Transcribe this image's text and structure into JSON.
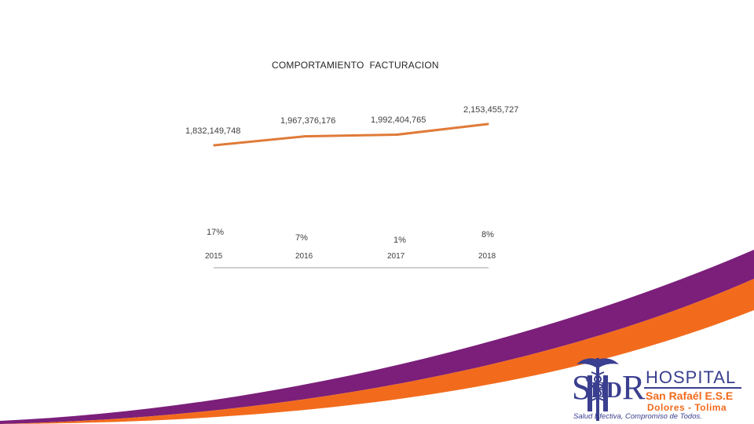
{
  "chart_data": {
    "type": "line",
    "title": "COMPORTAMIENTO  FACTURACION",
    "categories": [
      "2015",
      "2016",
      "2017",
      "2018"
    ],
    "values": [
      1832149748,
      1967376176,
      1992404765,
      2153455727
    ],
    "value_labels": [
      "1,832,149,748",
      "1,967,376,176",
      "1,992,404,765",
      "2,153,455,727"
    ],
    "growth_labels": [
      "17%",
      "7%",
      "1%",
      "8%"
    ],
    "xlabel": "",
    "ylabel": "",
    "line_color": "#e07b39",
    "legend": "none",
    "grid": false
  },
  "logo": {
    "letters_left": "S",
    "letters_mid": "HD",
    "letters_right": "R",
    "line1": "HOSPITAL",
    "line2": "San Rafaél E.S.E",
    "line3": "Dolores - Tolima",
    "tagline": "Salud Efectiva, Compromiso de Todos."
  },
  "colors": {
    "purple_band": "#7b1f7a",
    "orange_band": "#f26b1d",
    "logo_blue": "#3a3f8f",
    "logo_orange": "#f26b1d"
  }
}
